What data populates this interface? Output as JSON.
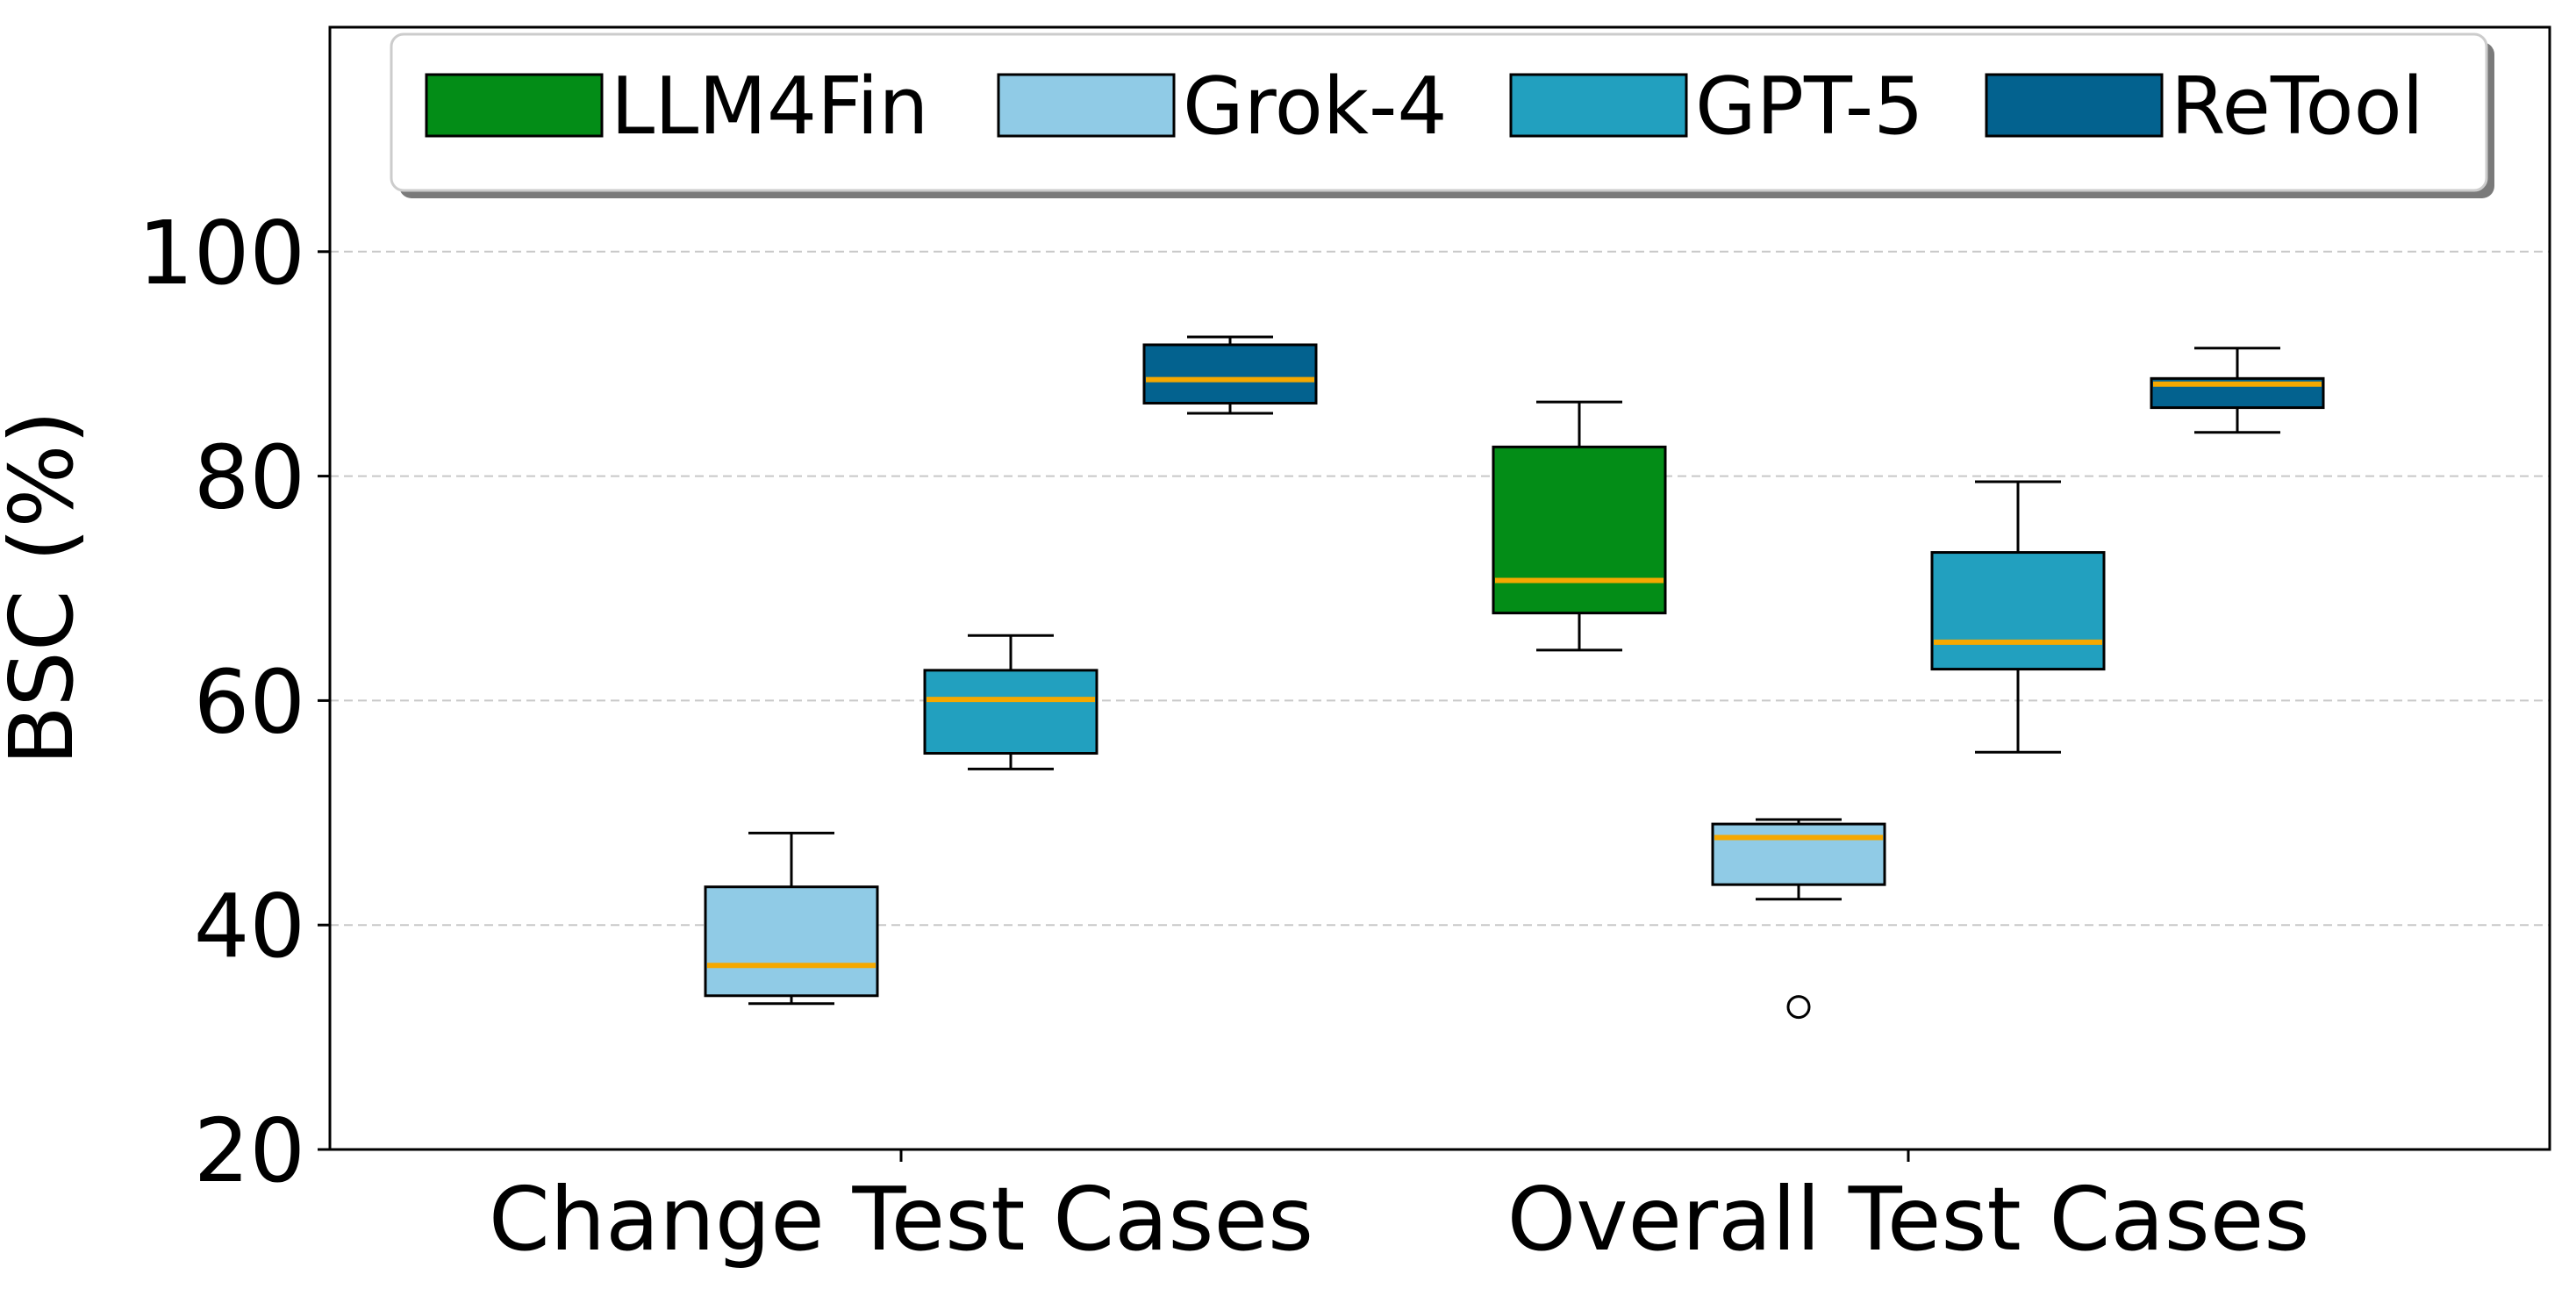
{
  "chart_data": {
    "type": "box",
    "ylabel": "BSC (%)",
    "ylim": [
      20,
      120
    ],
    "yticks": [
      "20",
      "40",
      "60",
      "80",
      "100"
    ],
    "grid": "horizontal dashed",
    "legend_position": "top",
    "categories": [
      "Change Test Cases",
      "Overall Test Cases"
    ],
    "series": [
      {
        "name": "LLM4Fin",
        "color": "#038d17",
        "boxes": [
          null,
          {
            "whisker_low": 64.5,
            "q1": 67.8,
            "median": 70.7,
            "q3": 82.6,
            "whisker_high": 86.6,
            "outliers": []
          }
        ]
      },
      {
        "name": "Grok-4",
        "color": "#90cbe6",
        "boxes": [
          {
            "whisker_low": 33.0,
            "q1": 33.7,
            "median": 36.4,
            "q3": 43.4,
            "whisker_high": 48.2,
            "outliers": []
          },
          {
            "whisker_low": 42.3,
            "q1": 43.6,
            "median": 47.8,
            "q3": 49.0,
            "whisker_high": 49.4,
            "outliers": [
              32.7
            ]
          }
        ]
      },
      {
        "name": "GPT-5",
        "color": "#22a0bf",
        "boxes": [
          {
            "whisker_low": 53.9,
            "q1": 55.3,
            "median": 60.1,
            "q3": 62.7,
            "whisker_high": 65.8,
            "outliers": []
          },
          {
            "whisker_low": 55.4,
            "q1": 62.8,
            "median": 65.2,
            "q3": 73.2,
            "whisker_high": 79.5,
            "outliers": []
          }
        ]
      },
      {
        "name": "ReTool",
        "color": "#03628f",
        "boxes": [
          {
            "whisker_low": 85.6,
            "q1": 86.5,
            "median": 88.6,
            "q3": 91.7,
            "whisker_high": 92.4,
            "outliers": []
          },
          {
            "whisker_low": 83.9,
            "q1": 86.1,
            "median": 88.2,
            "q3": 88.7,
            "whisker_high": 91.4,
            "outliers": []
          }
        ]
      }
    ],
    "median_color": "#f5a800"
  }
}
